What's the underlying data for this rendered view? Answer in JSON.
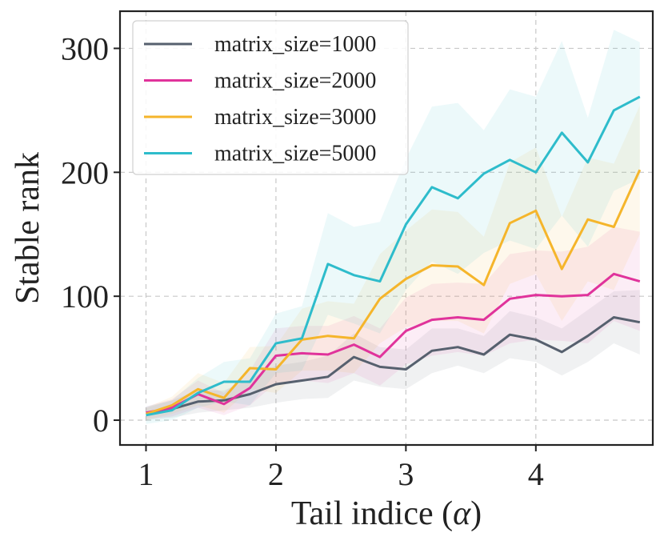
{
  "chart_data": {
    "type": "line",
    "title": "",
    "xlabel": "Tail indice (",
    "xlabel_symbol": "α",
    "xlabel_close": ")",
    "ylabel": "Stable rank",
    "xlim": [
      0.8,
      4.9
    ],
    "ylim": [
      -20,
      330
    ],
    "xticks": [
      1,
      2,
      3,
      4
    ],
    "yticks": [
      0,
      100,
      200,
      300
    ],
    "grid": true,
    "legend_position": "top-left",
    "x": [
      1.0,
      1.2,
      1.4,
      1.6,
      1.8,
      2.0,
      2.2,
      2.4,
      2.6,
      2.8,
      3.0,
      3.2,
      3.4,
      3.6,
      3.8,
      4.0,
      4.2,
      4.4,
      4.6,
      4.8
    ],
    "series": [
      {
        "name": "matrix_size=1000",
        "color": "#56606e",
        "values": [
          5,
          9,
          15,
          16,
          21,
          29,
          32,
          35,
          51,
          43,
          41,
          56,
          59,
          53,
          69,
          65,
          55,
          68,
          83,
          79
        ],
        "lower": [
          0,
          2,
          6,
          8,
          10,
          14,
          17,
          18,
          32,
          27,
          25,
          38,
          44,
          38,
          50,
          47,
          36,
          47,
          62,
          53
        ],
        "upper": [
          10,
          16,
          24,
          24,
          33,
          44,
          47,
          52,
          70,
          59,
          57,
          74,
          74,
          68,
          88,
          83,
          74,
          89,
          104,
          105
        ]
      },
      {
        "name": "matrix_size=2000",
        "color": "#e0339b",
        "values": [
          6,
          10,
          21,
          13,
          26,
          52,
          54,
          53,
          61,
          51,
          72,
          81,
          83,
          81,
          98,
          101,
          100,
          101,
          118,
          112
        ],
        "lower": [
          1,
          3,
          10,
          4,
          12,
          30,
          32,
          30,
          38,
          28,
          45,
          52,
          55,
          52,
          62,
          65,
          64,
          62,
          80,
          72
        ],
        "upper": [
          11,
          17,
          32,
          22,
          40,
          74,
          76,
          76,
          84,
          74,
          99,
          110,
          111,
          110,
          134,
          137,
          136,
          140,
          156,
          152
        ]
      },
      {
        "name": "matrix_size=3000",
        "color": "#f5b52b",
        "values": [
          5,
          12,
          25,
          18,
          42,
          41,
          65,
          68,
          66,
          98,
          114,
          125,
          124,
          109,
          159,
          169,
          122,
          162,
          156,
          202
        ],
        "lower": [
          0,
          5,
          12,
          6,
          25,
          22,
          40,
          40,
          38,
          62,
          75,
          80,
          80,
          70,
          110,
          118,
          80,
          112,
          105,
          150
        ],
        "upper": [
          10,
          19,
          38,
          30,
          59,
          60,
          90,
          96,
          94,
          134,
          153,
          170,
          168,
          148,
          208,
          220,
          164,
          212,
          207,
          254
        ]
      },
      {
        "name": "matrix_size=5000",
        "color": "#2ebccb",
        "values": [
          4,
          8,
          22,
          31,
          31,
          62,
          66,
          126,
          117,
          112,
          158,
          188,
          179,
          199,
          210,
          200,
          232,
          208,
          250,
          261
        ],
        "lower": [
          -3,
          0,
          10,
          15,
          12,
          38,
          40,
          85,
          78,
          70,
          105,
          128,
          118,
          135,
          145,
          138,
          165,
          140,
          185,
          195
        ],
        "upper": [
          11,
          16,
          34,
          47,
          50,
          86,
          92,
          167,
          156,
          160,
          211,
          253,
          256,
          234,
          267,
          261,
          306,
          244,
          315,
          305
        ]
      }
    ]
  }
}
